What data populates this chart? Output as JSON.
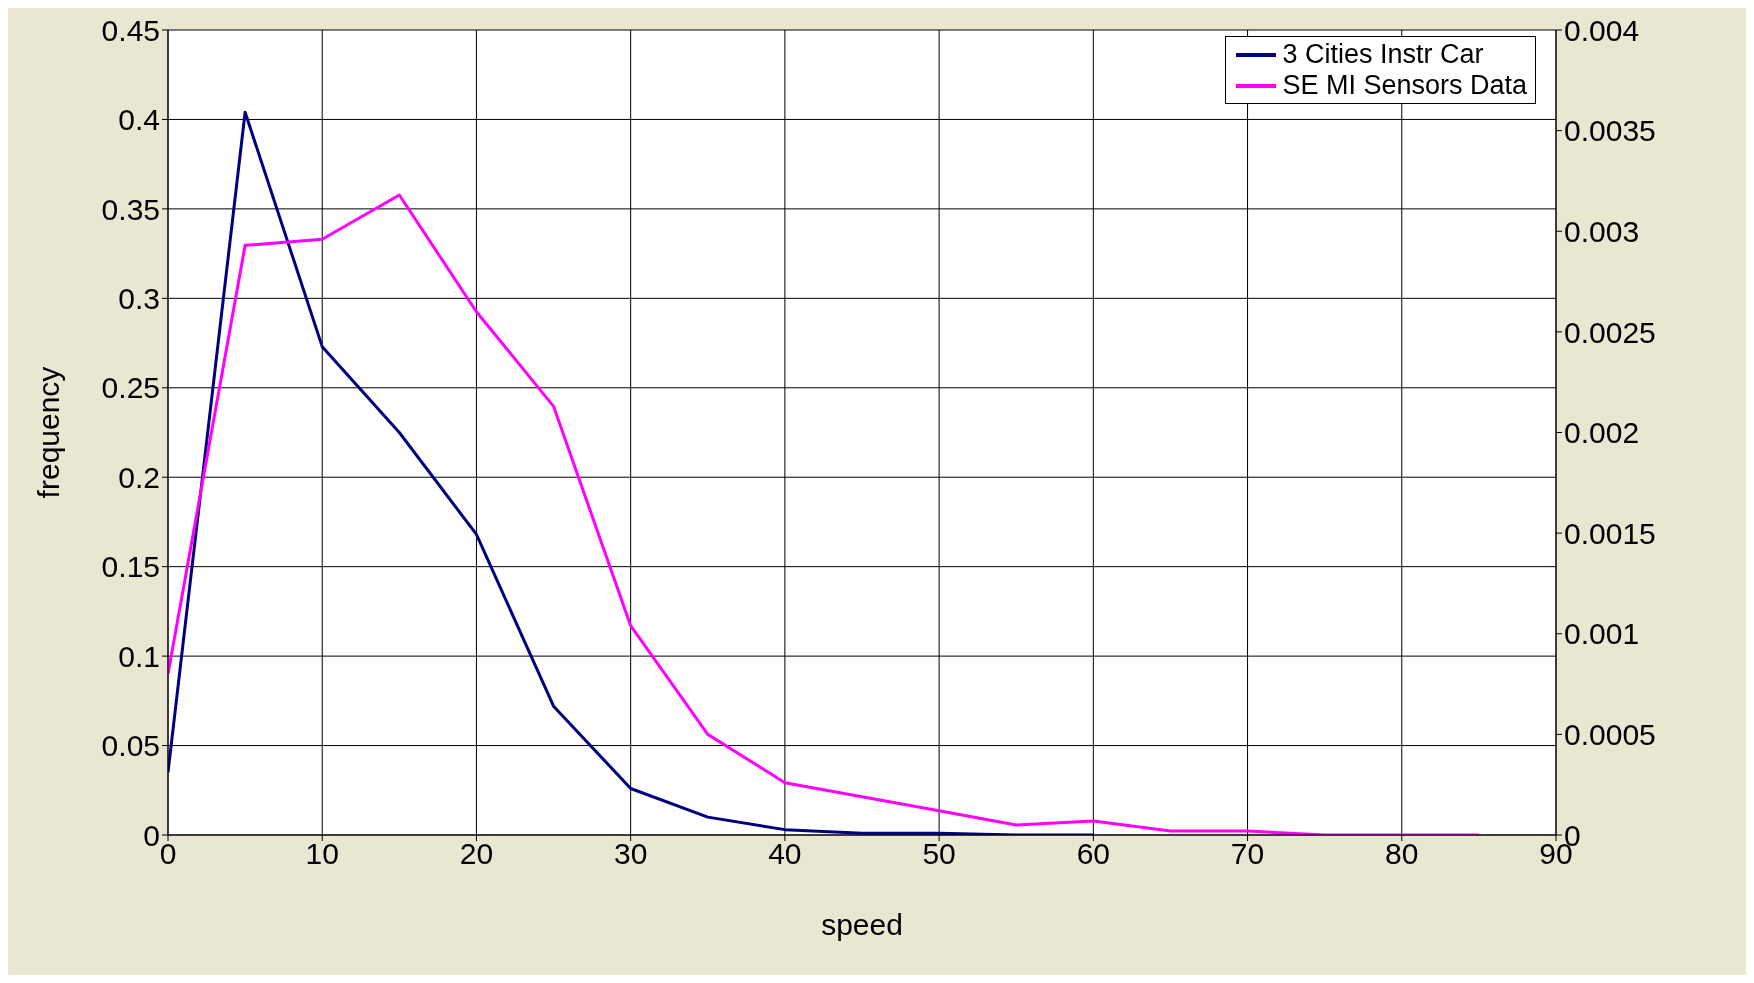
{
  "chart_data": {
    "type": "line",
    "xlabel": "speed",
    "ylabel": "frequency",
    "xlim": [
      0,
      90
    ],
    "xticks": [
      0,
      10,
      20,
      30,
      40,
      50,
      60,
      70,
      80,
      90
    ],
    "ylim": [
      0,
      0.45
    ],
    "yticks": [
      0,
      0.05,
      0.1,
      0.15,
      0.2,
      0.25,
      0.3,
      0.35,
      0.4,
      0.45
    ],
    "y2lim": [
      0,
      0.004
    ],
    "y2ticks": [
      0,
      0.0005,
      0.001,
      0.0015,
      0.002,
      0.0025,
      0.003,
      0.0035,
      0.004
    ],
    "grid": true,
    "legend": "top right",
    "marker": "none",
    "line_style": "solid",
    "series": [
      {
        "name": "3 Cities Instr Car",
        "color": "#000080",
        "x": [
          0,
          5,
          10,
          15,
          20,
          25,
          30,
          35,
          40,
          45,
          50,
          55,
          60
        ],
        "values": [
          0.035,
          0.404,
          0.273,
          0.225,
          0.168,
          0.072,
          0.026,
          0.01,
          0.003,
          0.001,
          0.001,
          0,
          0
        ]
      },
      {
        "name": "SE MI Sensors Data",
        "color": "#ff00ff",
        "axis": "y2",
        "x": [
          0,
          5,
          10,
          15,
          20,
          25,
          30,
          35,
          40,
          45,
          50,
          55,
          60,
          65,
          70,
          75,
          80,
          85
        ],
        "values": [
          0.0008,
          0.00293,
          0.00296,
          0.00318,
          0.0026,
          0.00213,
          0.00104,
          0.0005,
          0.00026,
          0.00019,
          0.00012,
          5e-05,
          7e-05,
          2e-05,
          2e-05,
          0,
          0,
          0
        ]
      }
    ]
  }
}
